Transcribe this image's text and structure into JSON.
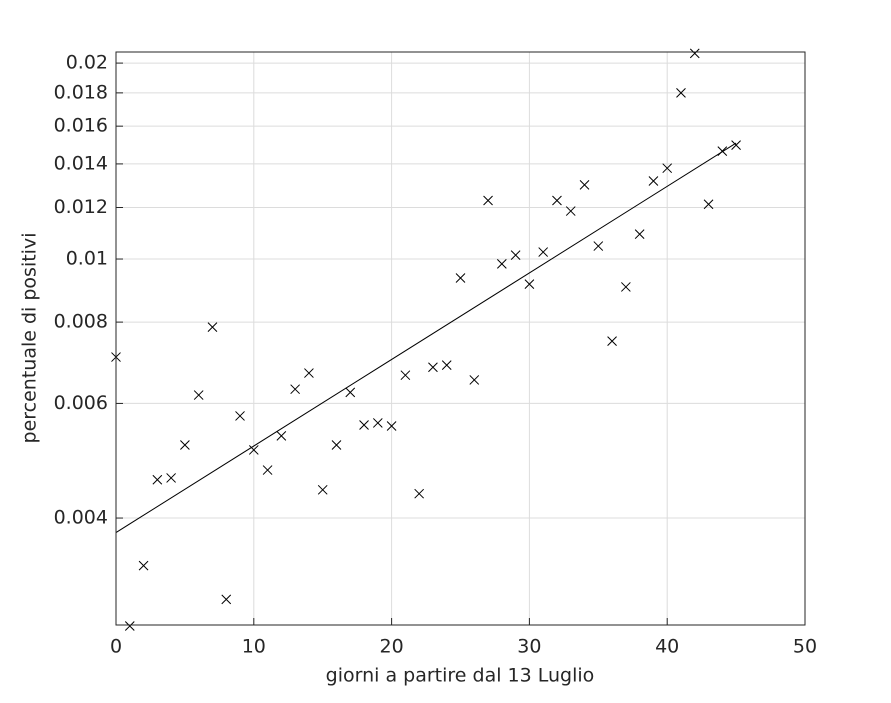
{
  "chart_data": {
    "type": "scatter",
    "xlabel": "giorni a partire dal 13 Luglio",
    "ylabel": "percentuale di positivi",
    "xlim": [
      0,
      50
    ],
    "xticks": [
      0,
      10,
      20,
      30,
      40,
      50
    ],
    "ylim": [
      0.00274,
      0.0208
    ],
    "yticks": [
      0.004,
      0.006,
      0.008,
      0.01,
      0.012,
      0.014,
      0.016,
      0.018,
      0.02
    ],
    "ylog": true,
    "grid": true,
    "series": [
      {
        "mode": "markers",
        "color": "#000000",
        "x": [
          0,
          1,
          2,
          3,
          4,
          5,
          6,
          7,
          8,
          9,
          10,
          11,
          12,
          13,
          14,
          15,
          16,
          17,
          18,
          19,
          20,
          21,
          22,
          23,
          24,
          25,
          26,
          27,
          28,
          29,
          30,
          31,
          32,
          33,
          34,
          35,
          36,
          37,
          38,
          39,
          40,
          41,
          42,
          43,
          44,
          45
        ],
        "values": [
          0.00707,
          0.00273,
          0.00338,
          0.00458,
          0.00461,
          0.00518,
          0.00618,
          0.00786,
          0.003,
          0.00574,
          0.00509,
          0.00474,
          0.00535,
          0.00631,
          0.00668,
          0.00442,
          0.00518,
          0.00624,
          0.00556,
          0.0056,
          0.00554,
          0.00663,
          0.00436,
          0.00682,
          0.00687,
          0.00935,
          0.00652,
          0.0123,
          0.00983,
          0.01014,
          0.00915,
          0.01025,
          0.0123,
          0.01185,
          0.013,
          0.01047,
          0.00748,
          0.00906,
          0.01092,
          0.01318,
          0.01379,
          0.018,
          0.0207,
          0.01214,
          0.01465,
          0.01496
        ]
      },
      {
        "mode": "line",
        "color": "#000000",
        "x": [
          0,
          45
        ],
        "values": [
          0.0038,
          0.01507
        ]
      }
    ]
  }
}
